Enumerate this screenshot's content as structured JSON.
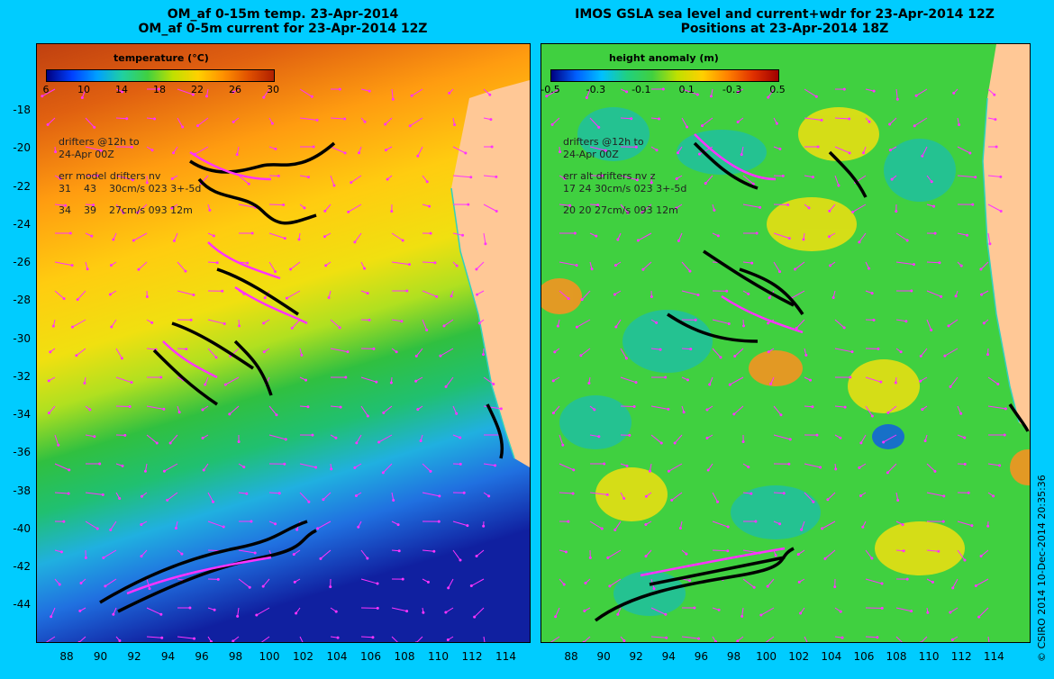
{
  "left_panel": {
    "title_line1": "OM_af 0-15m temp. 23-Apr-2014",
    "title_line2": "OM_af 0-5m current for 23-Apr-2014 12Z",
    "colorbar": {
      "label": "temperature (°C)",
      "ticks": [
        "6",
        "10",
        "14",
        "18",
        "22",
        "26",
        "30"
      ],
      "colors": [
        "#000080",
        "#0040ff",
        "#00a0ff",
        "#20d0a0",
        "#40d040",
        "#c0e000",
        "#ffd000",
        "#ff9000",
        "#e05000",
        "#b02000"
      ]
    },
    "legend": {
      "line1": "drifters @12h to",
      "line2": "24-Apr 00Z",
      "line3": "err model drifters nv",
      "line4": "31    43    30cm/s 023 3+-5d",
      "line5": "34    39    27cm/s 093 12m"
    }
  },
  "right_panel": {
    "title_line1": "IMOS GSLA sea level and current+wdr for 23-Apr-2014 12Z",
    "title_line2": "Positions at 23-Apr-2014 18Z",
    "colorbar": {
      "label": "height anomaly (m)",
      "ticks": [
        "-0.5",
        "-0.3",
        "-0.1",
        "0.1",
        "-0.3",
        "0.5"
      ],
      "colors": [
        "#000080",
        "#0060ff",
        "#00c0ff",
        "#20d080",
        "#40d040",
        "#c0e000",
        "#ffd000",
        "#ff8000",
        "#e03000",
        "#a00000"
      ]
    },
    "legend": {
      "line1": "drifters @12h to",
      "line2": "24-Apr 00Z",
      "line3": "err alt drifters nv z",
      "line4": "17 24 30cm/s 023 3+-5d",
      "line5": "20 20 27cm/s 093 12m"
    }
  },
  "y_axis": {
    "ticks": [
      "-18",
      "-20",
      "-22",
      "-24",
      "-26",
      "-28",
      "-30",
      "-32",
      "-34",
      "-36",
      "-38",
      "-40",
      "-42",
      "-44"
    ]
  },
  "x_axis_left": {
    "ticks": [
      "88",
      "90",
      "92",
      "94",
      "96",
      "98",
      "100",
      "102",
      "104",
      "106",
      "108",
      "110",
      "112",
      "114"
    ]
  },
  "x_axis_right": {
    "ticks": [
      "88",
      "90",
      "92",
      "94",
      "96",
      "98",
      "100",
      "102",
      "104",
      "106",
      "108",
      "110",
      "112",
      "114"
    ]
  },
  "credit": "© CSIRO 2014    10-Dec-2014 20:35:36",
  "colors": {
    "background": "#00ccff",
    "land": "#ffc896",
    "drifter_track": "#000000",
    "drifter_model": "#ff33ff",
    "vector": "#ff33ff",
    "drifter_point": "#cc2200"
  }
}
